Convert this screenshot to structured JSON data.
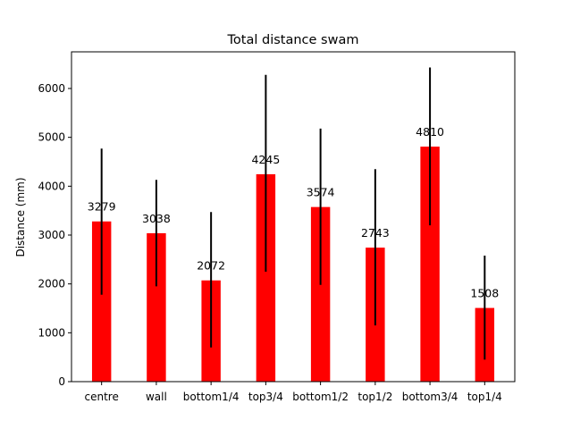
{
  "chart_data": {
    "type": "bar",
    "title": "Total distance swam",
    "xlabel": "",
    "ylabel": "Distance (mm)",
    "categories": [
      "centre",
      "wall",
      "bottom1/4",
      "top3/4",
      "bottom1/2",
      "top1/2",
      "bottom3/4",
      "top1/4"
    ],
    "values": [
      3279,
      3038,
      2072,
      4245,
      3574,
      2743,
      4810,
      1508
    ],
    "error_low": [
      1780,
      1950,
      700,
      2250,
      1980,
      1150,
      3200,
      450
    ],
    "error_high": [
      4770,
      4130,
      3470,
      6280,
      5180,
      4350,
      6430,
      2580
    ],
    "data_labels": [
      "3279",
      "3038",
      "2072",
      "4245",
      "3574",
      "2743",
      "4810",
      "1508"
    ],
    "ylim": [
      0,
      6750
    ],
    "yticks": [
      0,
      1000,
      2000,
      3000,
      4000,
      5000,
      6000
    ],
    "ytick_labels": [
      "0",
      "1000",
      "2000",
      "3000",
      "4000",
      "5000",
      "6000"
    ],
    "grid": false,
    "colors": {
      "bar": "#ff0000",
      "error_bar": "#000000",
      "axis": "#000000"
    }
  }
}
